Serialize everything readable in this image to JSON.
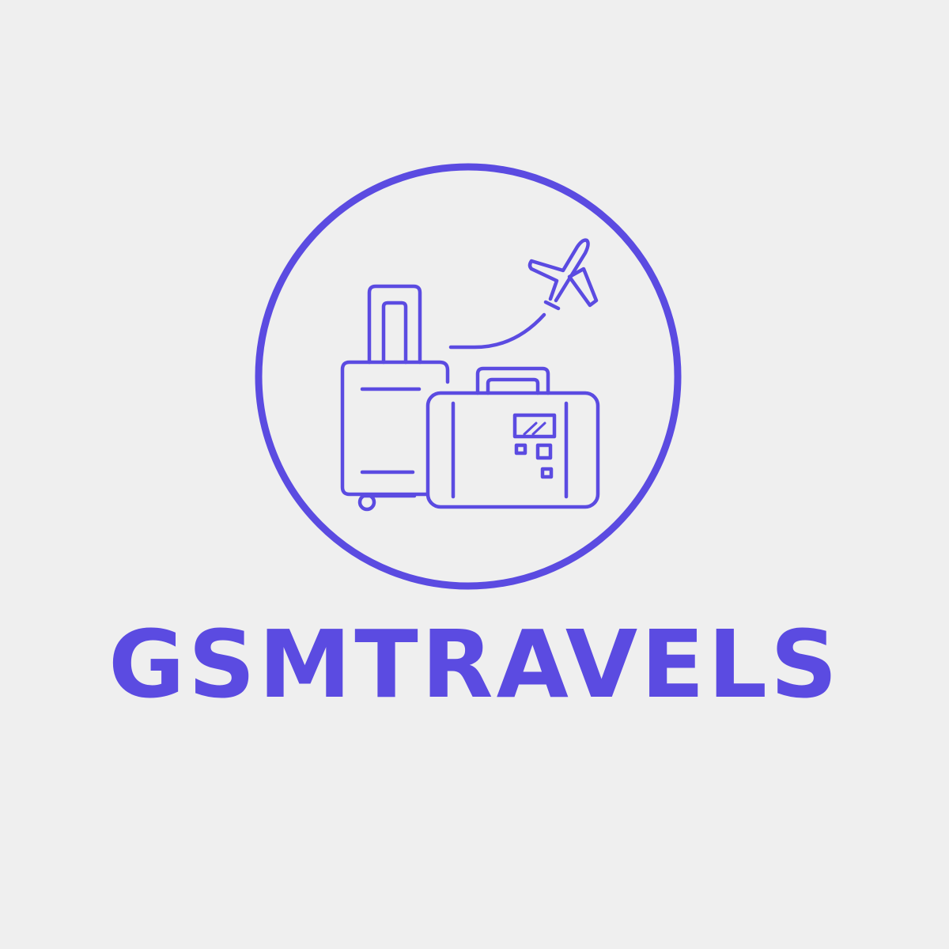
{
  "brand": {
    "name": "GSMTRAVELS",
    "color": "#5b4be1",
    "background": "#efefef"
  },
  "emblem": {
    "icons": [
      "airplane-icon",
      "rolling-suitcase-icon",
      "briefcase-suitcase-icon"
    ]
  }
}
